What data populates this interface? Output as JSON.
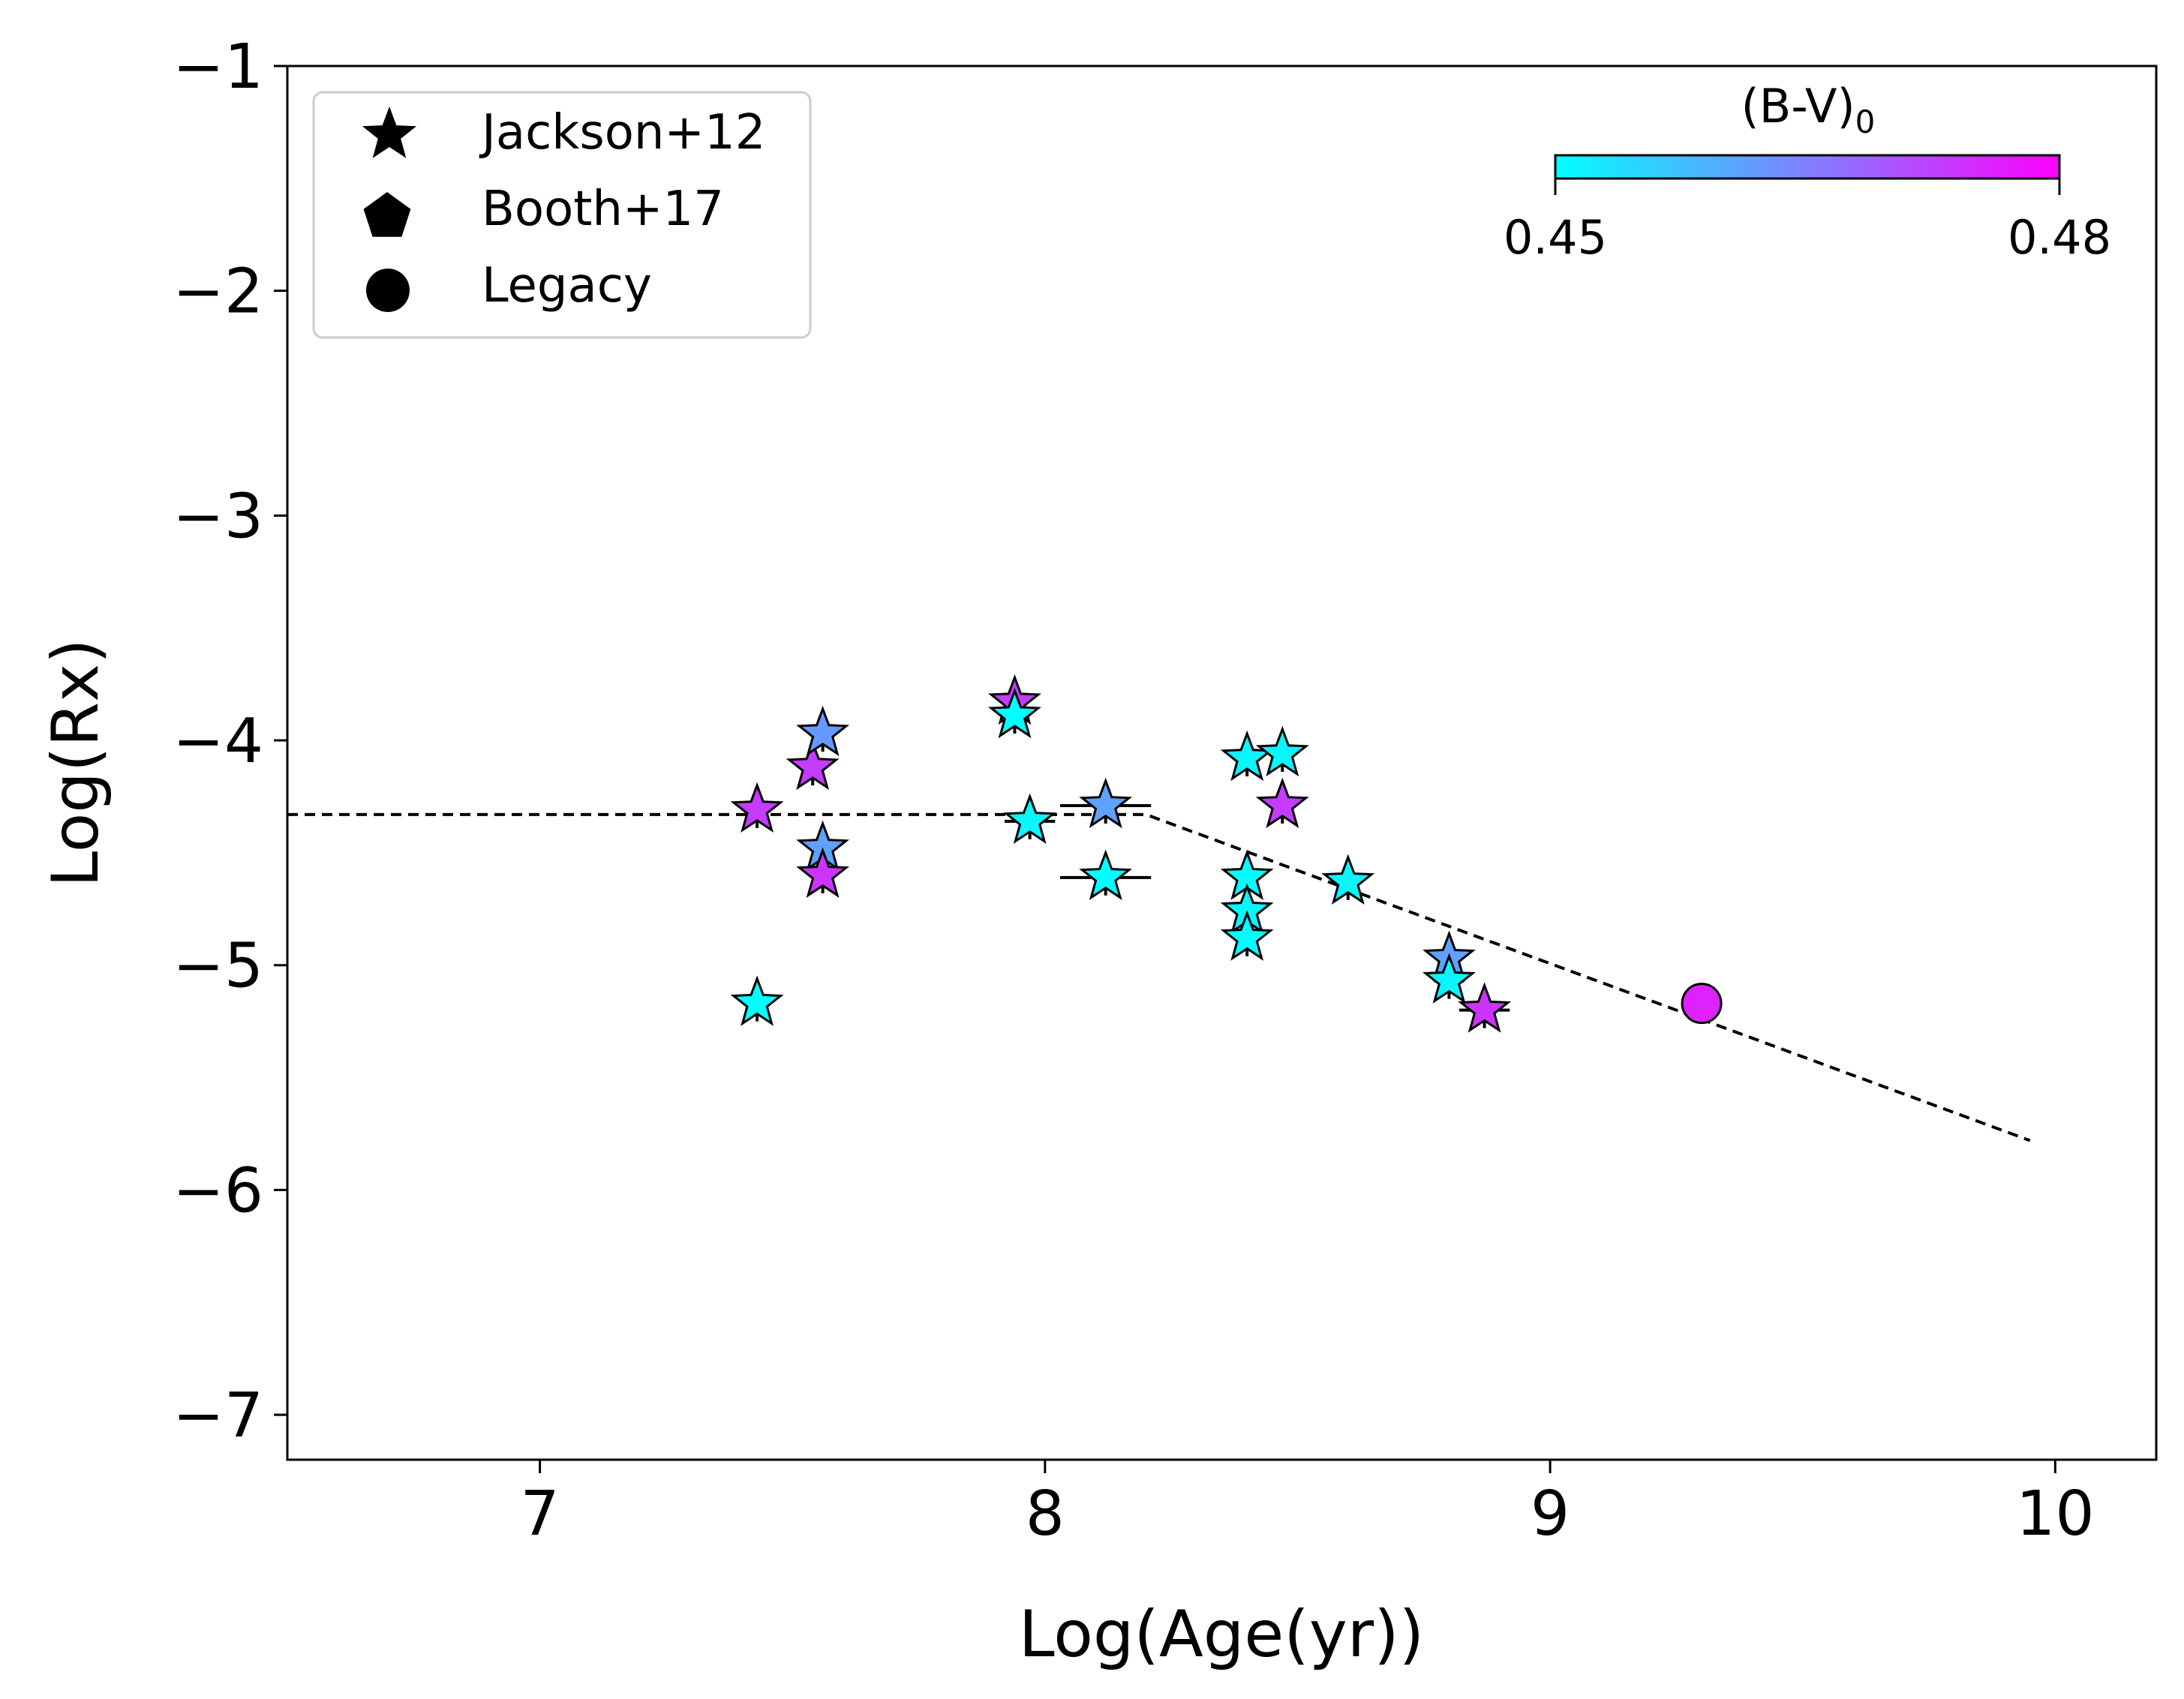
{
  "chart_data": {
    "type": "scatter",
    "title": "",
    "xlabel": "Log(Age(yr))",
    "ylabel": "Log(Rx)",
    "xlim": [
      6.5,
      10.2
    ],
    "ylim": [
      -7.2,
      -1.0
    ],
    "xticks": [
      7,
      8,
      9,
      10
    ],
    "yticks": [
      -1,
      -2,
      -3,
      -4,
      -5,
      -6,
      -7
    ],
    "xtick_labels": [
      "7",
      "8",
      "9",
      "10"
    ],
    "ytick_labels": [
      "−1",
      "−2",
      "−3",
      "−4",
      "−5",
      "−6",
      "−7"
    ],
    "grid": false,
    "legend": {
      "position": "top-left",
      "entries": [
        {
          "label": "Jackson+12",
          "marker": "star"
        },
        {
          "label": "Booth+17",
          "marker": "pentagon"
        },
        {
          "label": "Legacy",
          "marker": "circle"
        }
      ]
    },
    "colorbar": {
      "label": "(B-V)",
      "label_subscript": "0",
      "min": 0.45,
      "max": 0.48,
      "min_label": "0.45",
      "max_label": "0.48",
      "position": "top-right",
      "colormap": [
        "#00ffff",
        "#ff00ff"
      ]
    },
    "fit_line": {
      "style": "dashed",
      "points": [
        [
          6.5,
          -4.33
        ],
        [
          8.2,
          -4.33
        ],
        [
          9.95,
          -5.78
        ]
      ]
    },
    "series": [
      {
        "name": "Jackson+12",
        "marker": "star",
        "points": [
          {
            "x": 7.43,
            "y": -4.31,
            "bv": 0.473,
            "xerr": 0,
            "yerr": 0.08
          },
          {
            "x": 7.43,
            "y": -5.17,
            "bv": 0.45,
            "xerr": 0,
            "yerr": 0.08
          },
          {
            "x": 7.54,
            "y": -4.12,
            "bv": 0.473,
            "xerr": 0,
            "yerr": 0.08
          },
          {
            "x": 7.56,
            "y": -3.97,
            "bv": 0.462,
            "xerr": 0,
            "yerr": 0.08
          },
          {
            "x": 7.56,
            "y": -4.48,
            "bv": 0.461,
            "xerr": 0,
            "yerr": 0.08
          },
          {
            "x": 7.56,
            "y": -4.6,
            "bv": 0.474,
            "xerr": 0,
            "yerr": 0.08
          },
          {
            "x": 7.94,
            "y": -3.83,
            "bv": 0.473,
            "xerr": 0,
            "yerr": 0.08
          },
          {
            "x": 7.94,
            "y": -3.89,
            "bv": 0.45,
            "xerr": 0,
            "yerr": 0.08
          },
          {
            "x": 7.97,
            "y": -4.36,
            "bv": 0.451,
            "xerr": 0.05,
            "yerr": 0.08
          },
          {
            "x": 8.12,
            "y": -4.29,
            "bv": 0.461,
            "xerr": 0.09,
            "yerr": 0.08
          },
          {
            "x": 8.12,
            "y": -4.61,
            "bv": 0.45,
            "xerr": 0.09,
            "yerr": 0.08
          },
          {
            "x": 8.4,
            "y": -4.08,
            "bv": 0.451,
            "xerr": 0,
            "yerr": 0.08
          },
          {
            "x": 8.4,
            "y": -4.61,
            "bv": 0.45,
            "xerr": 0,
            "yerr": 0.08
          },
          {
            "x": 8.4,
            "y": -4.76,
            "bv": 0.451,
            "xerr": 0,
            "yerr": 0.08
          },
          {
            "x": 8.4,
            "y": -4.88,
            "bv": 0.45,
            "xerr": 0,
            "yerr": 0.08
          },
          {
            "x": 8.47,
            "y": -4.06,
            "bv": 0.451,
            "xerr": 0,
            "yerr": 0.08
          },
          {
            "x": 8.47,
            "y": -4.29,
            "bv": 0.473,
            "xerr": 0,
            "yerr": 0.08
          },
          {
            "x": 8.6,
            "y": -4.63,
            "bv": 0.451,
            "xerr": 0,
            "yerr": 0.08
          },
          {
            "x": 8.8,
            "y": -4.97,
            "bv": 0.461,
            "xerr": 0,
            "yerr": 0.08
          },
          {
            "x": 8.8,
            "y": -5.07,
            "bv": 0.451,
            "xerr": 0.03,
            "yerr": 0.08
          },
          {
            "x": 8.87,
            "y": -5.2,
            "bv": 0.474,
            "xerr": 0.05,
            "yerr": 0.08
          }
        ]
      },
      {
        "name": "Booth+17",
        "marker": "pentagon",
        "points": []
      },
      {
        "name": "Legacy",
        "marker": "circle",
        "points": [
          {
            "x": 9.3,
            "y": -5.17,
            "bv": 0.476,
            "xerr": 0,
            "yerr": 0
          }
        ]
      }
    ]
  }
}
